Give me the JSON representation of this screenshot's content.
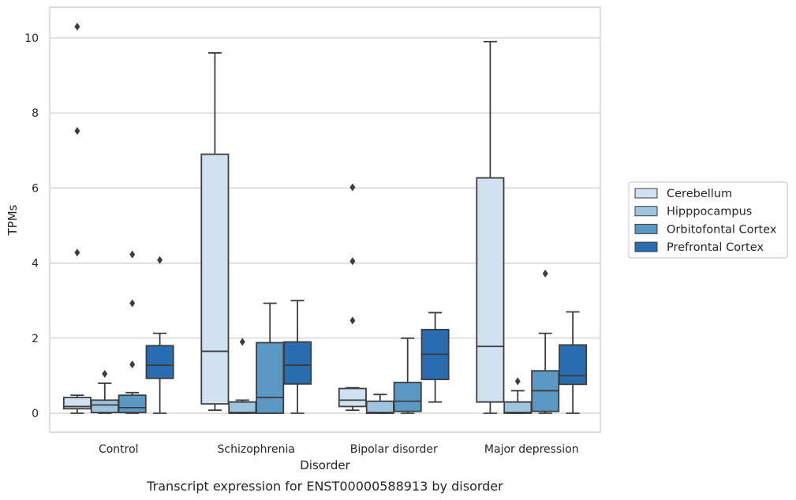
{
  "chart_data": {
    "type": "boxplot",
    "caption": "Transcript expression for ENST00000588913 by disorder",
    "xlabel": "Disorder",
    "ylabel": "TPMs",
    "ylim": [
      -0.5,
      10.8
    ],
    "yticks": [
      0,
      2,
      4,
      6,
      8,
      10
    ],
    "grid": "horizontal",
    "legend_position": "right",
    "categories": [
      "Control",
      "Schizophrenia",
      "Bipolar disorder",
      "Major depression"
    ],
    "series": [
      {
        "name": "Cerebellum",
        "color": "#d1e1f0",
        "boxes": [
          {
            "whislo": 0.0,
            "q1": 0.12,
            "med": 0.18,
            "q3": 0.42,
            "whishi": 0.48,
            "fliers": [
              4.28,
              7.52,
              10.3
            ]
          },
          {
            "whislo": 0.08,
            "q1": 0.25,
            "med": 1.65,
            "q3": 6.9,
            "whishi": 9.6,
            "fliers": []
          },
          {
            "whislo": 0.08,
            "q1": 0.18,
            "med": 0.35,
            "q3": 0.66,
            "whishi": 0.68,
            "fliers": [
              2.47,
              4.05,
              6.02
            ]
          },
          {
            "whislo": 0.0,
            "q1": 0.3,
            "med": 1.78,
            "q3": 6.27,
            "whishi": 9.9,
            "fliers": []
          }
        ]
      },
      {
        "name": "Hipppocampus",
        "color": "#9ec4de",
        "boxes": [
          {
            "whislo": 0.0,
            "q1": 0.02,
            "med": 0.22,
            "q3": 0.35,
            "whishi": 0.8,
            "fliers": [
              1.05
            ]
          },
          {
            "whislo": 0.0,
            "q1": 0.0,
            "med": 0.02,
            "q3": 0.3,
            "whishi": 0.35,
            "fliers": [
              1.9
            ]
          },
          {
            "whislo": 0.0,
            "q1": 0.0,
            "med": 0.02,
            "q3": 0.32,
            "whishi": 0.5,
            "fliers": []
          },
          {
            "whislo": 0.0,
            "q1": 0.0,
            "med": 0.02,
            "q3": 0.3,
            "whishi": 0.6,
            "fliers": [
              0.85
            ]
          }
        ]
      },
      {
        "name": "Orbitofontal Cortex",
        "color": "#5b98c4",
        "boxes": [
          {
            "whislo": 0.0,
            "q1": 0.02,
            "med": 0.15,
            "q3": 0.48,
            "whishi": 0.55,
            "fliers": [
              1.3,
              2.93,
              4.23
            ]
          },
          {
            "whislo": 0.0,
            "q1": 0.0,
            "med": 0.42,
            "q3": 1.88,
            "whishi": 2.93,
            "fliers": []
          },
          {
            "whislo": 0.0,
            "q1": 0.05,
            "med": 0.32,
            "q3": 0.82,
            "whishi": 2.0,
            "fliers": []
          },
          {
            "whislo": 0.0,
            "q1": 0.05,
            "med": 0.6,
            "q3": 1.13,
            "whishi": 2.13,
            "fliers": [
              3.72
            ]
          }
        ]
      },
      {
        "name": "Prefrontal Cortex",
        "color": "#2a6cb0",
        "boxes": [
          {
            "whislo": 0.0,
            "q1": 0.93,
            "med": 1.28,
            "q3": 1.8,
            "whishi": 2.13,
            "fliers": [
              4.08
            ]
          },
          {
            "whislo": 0.0,
            "q1": 0.78,
            "med": 1.28,
            "q3": 1.9,
            "whishi": 3.0,
            "fliers": []
          },
          {
            "whislo": 0.3,
            "q1": 0.9,
            "med": 1.57,
            "q3": 2.23,
            "whishi": 2.68,
            "fliers": []
          },
          {
            "whislo": 0.0,
            "q1": 0.77,
            "med": 1.0,
            "q3": 1.82,
            "whishi": 2.7,
            "fliers": []
          }
        ]
      }
    ]
  }
}
